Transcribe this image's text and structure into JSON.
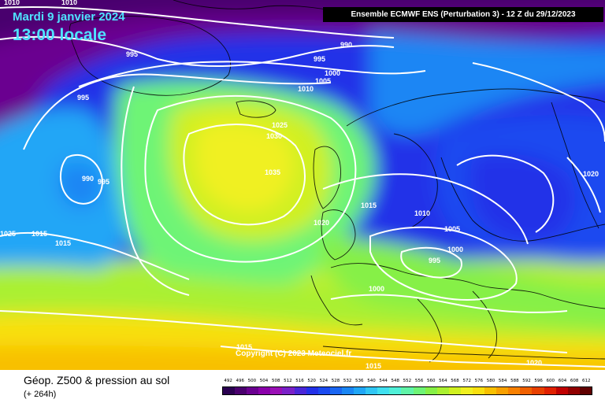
{
  "header": {
    "date": "Mardi 9 janvier 2024",
    "local_time": "13:00 locale",
    "model_run": "Ensemble ECMWF ENS  (Perturbation 3)  -  12 Z du 29/12/2023"
  },
  "copyright": "Copyright (C) 2023 Meteociel.fr",
  "footer": {
    "field_label": "Géop. Z500 & pression au sol",
    "lead_time": "(+ 264h)"
  },
  "legend": {
    "values": [
      "492",
      "496",
      "500",
      "504",
      "508",
      "512",
      "516",
      "520",
      "524",
      "528",
      "532",
      "536",
      "540",
      "544",
      "548",
      "552",
      "556",
      "560",
      "564",
      "568",
      "572",
      "576",
      "580",
      "584",
      "588",
      "592",
      "596",
      "600",
      "604",
      "608",
      "612"
    ],
    "colors": [
      "#2a0050",
      "#4a006e",
      "#6a0090",
      "#8a00aa",
      "#9a10b6",
      "#7a20c8",
      "#4a26d8",
      "#2230e8",
      "#1a4af0",
      "#1a66f2",
      "#1a86f4",
      "#20a6f6",
      "#30c6f4",
      "#40e0f0",
      "#50f0d8",
      "#60f4a8",
      "#6ef476",
      "#86f046",
      "#aaf030",
      "#d0f020",
      "#f0f020",
      "#f8e010",
      "#f8c000",
      "#f8a000",
      "#f88000",
      "#f06000",
      "#e84000",
      "#e02000",
      "#c00000",
      "#900000",
      "#600000"
    ]
  },
  "isobar_labels": [
    "1010",
    "1010",
    "995",
    "990",
    "995",
    "1000",
    "1005",
    "1010",
    "995",
    "1025",
    "1030",
    "990",
    "995",
    "1035",
    "1020",
    "1015",
    "1020",
    "1015",
    "1010",
    "1005",
    "1000",
    "995",
    "1000",
    "1025",
    "1015",
    "1015",
    "1020"
  ],
  "icons": {
    "map": "geopotential-pressure-map"
  }
}
